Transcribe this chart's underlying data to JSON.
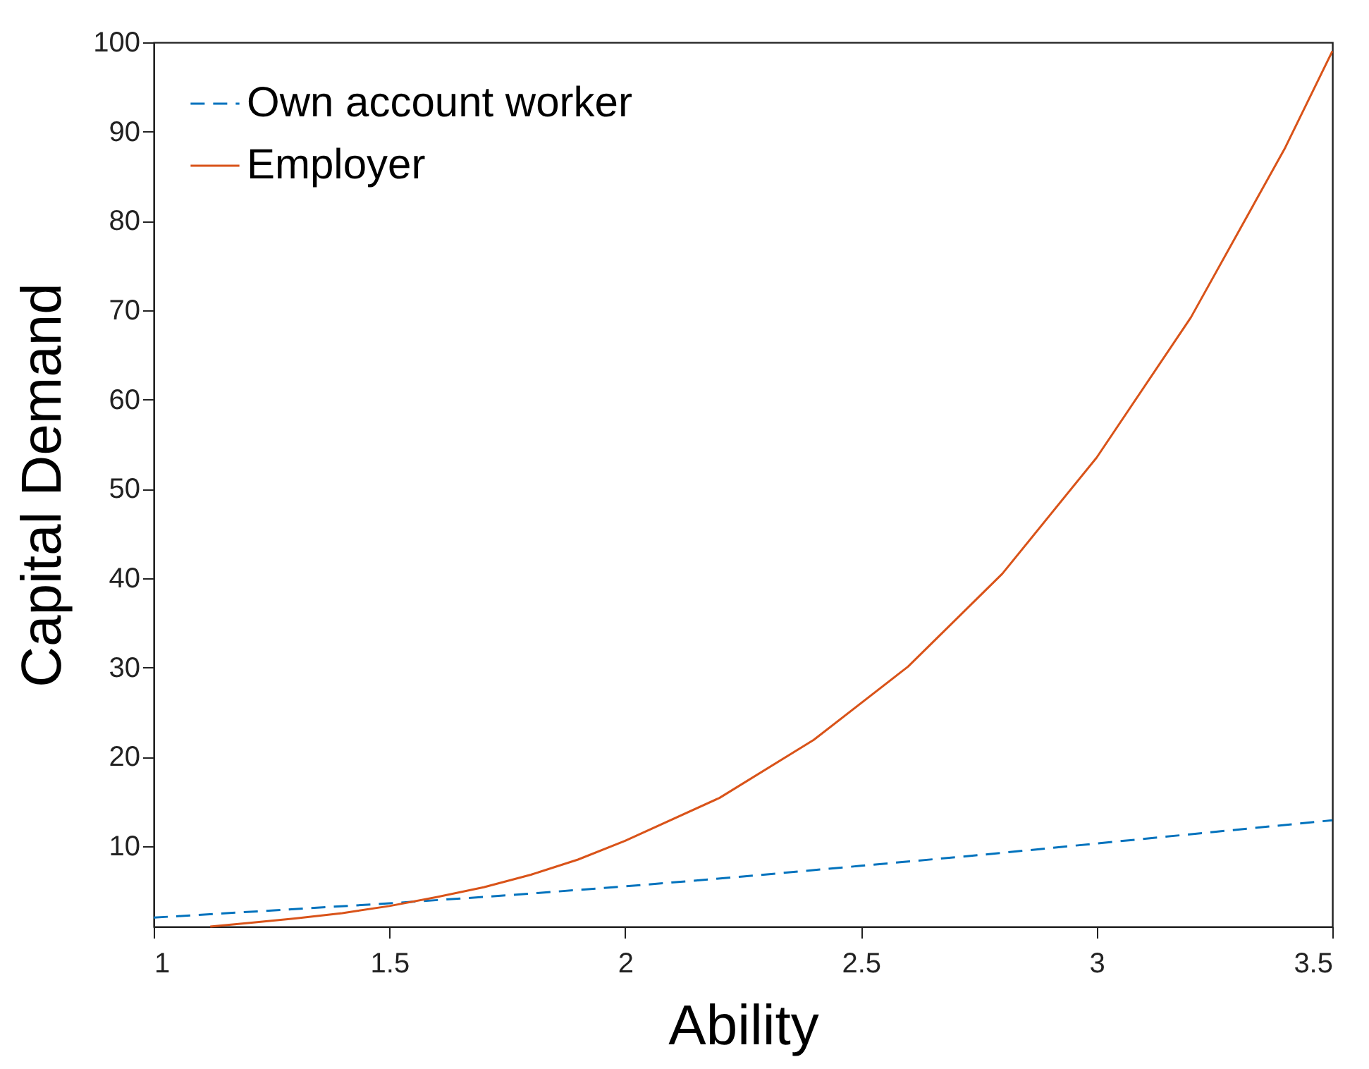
{
  "chart_data": {
    "type": "line",
    "xlabel": "Ability",
    "ylabel": "Capital Demand",
    "xlim": [
      1,
      3.5
    ],
    "ylim": [
      1,
      100
    ],
    "xticks": [
      1,
      1.5,
      2,
      2.5,
      3,
      3.5
    ],
    "yticks": [
      10,
      20,
      30,
      40,
      50,
      60,
      70,
      80,
      90,
      100
    ],
    "grid": false,
    "legend": "top left",
    "marker": "none",
    "series": [
      {
        "name": "Own account worker",
        "color": "#0072bd",
        "line_style": "dashed",
        "x": [
          1,
          1.25,
          1.5,
          1.75,
          2,
          2.25,
          2.5,
          2.75,
          3,
          3.25,
          3.5
        ],
        "values": [
          2.0,
          2.8,
          3.6,
          4.5,
          5.5,
          6.6,
          7.8,
          9.0,
          10.3,
          11.6,
          12.9
        ]
      },
      {
        "name": "Employer",
        "color": "#d95319",
        "line_style": "solid",
        "x": [
          1.12,
          1.2,
          1.3,
          1.4,
          1.5,
          1.6,
          1.7,
          1.8,
          1.9,
          2.0,
          2.2,
          2.4,
          2.6,
          2.8,
          3.0,
          3.2,
          3.4,
          3.5
        ],
        "values": [
          1.0,
          1.4,
          1.9,
          2.5,
          3.3,
          4.3,
          5.4,
          6.8,
          8.5,
          10.6,
          15.4,
          21.9,
          30.1,
          40.5,
          53.5,
          69.2,
          88.2,
          99
        ]
      }
    ]
  }
}
